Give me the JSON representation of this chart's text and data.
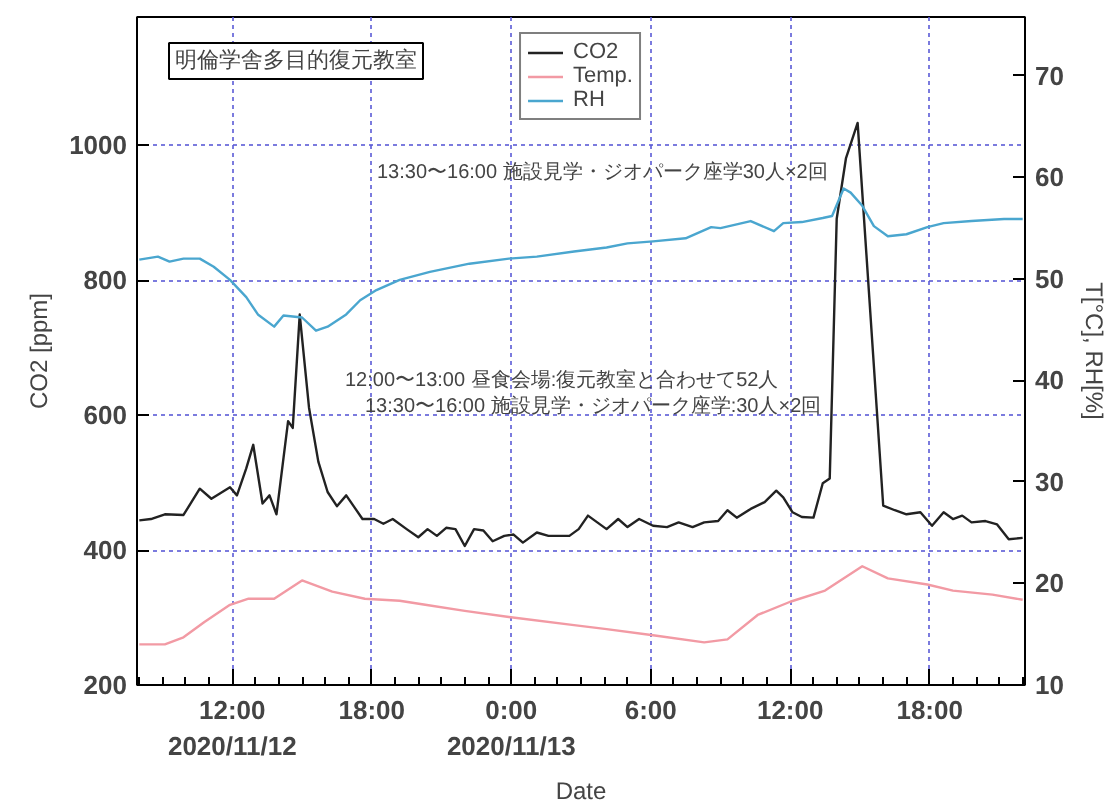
{
  "chart_data": {
    "type": "line",
    "title": "明倫学舎多目的復元教室",
    "xlabel": "Date",
    "ylabel": "CO2 [ppm]",
    "y2label": "T[°C], RH[%]",
    "xlim": [
      "2020-11-12T07:54",
      "2020-11-13T22:06"
    ],
    "xticks": [
      {
        "value": "2020-11-12T12:00",
        "label": "12:00\n2020/11/12"
      },
      {
        "value": "2020-11-12T18:00",
        "label": "18:00"
      },
      {
        "value": "2020-11-13T00:00",
        "label": "0:00\n2020/11/13"
      },
      {
        "value": "2020-11-13T06:00",
        "label": "6:00"
      },
      {
        "value": "2020-11-13T12:00",
        "label": "12:00"
      },
      {
        "value": "2020-11-13T18:00",
        "label": "18:00"
      }
    ],
    "ylim": [
      200,
      1190
    ],
    "yticks": [
      200,
      400,
      600,
      800,
      1000
    ],
    "y2lim": [
      10,
      75.8
    ],
    "y2ticks": [
      10,
      20,
      30,
      40,
      50,
      60,
      70
    ],
    "grid": true,
    "legend": "top",
    "line_style": "solid",
    "series": [
      {
        "name": "CO2",
        "color": "#222222",
        "x": [
          "2020-11-12T08:00",
          "2020-11-12T08:30",
          "2020-11-12T09:06",
          "2020-11-12T09:54",
          "2020-11-12T10:36",
          "2020-11-12T11:06",
          "2020-11-12T11:54",
          "2020-11-12T12:12",
          "2020-11-12T12:36",
          "2020-11-12T12:54",
          "2020-11-12T13:18",
          "2020-11-12T13:36",
          "2020-11-12T13:54",
          "2020-11-12T14:24",
          "2020-11-12T14:36",
          "2020-11-12T14:54",
          "2020-11-12T15:18",
          "2020-11-12T15:42",
          "2020-11-12T16:06",
          "2020-11-12T16:30",
          "2020-11-12T16:54",
          "2020-11-12T17:18",
          "2020-11-12T17:36",
          "2020-11-12T18:06",
          "2020-11-12T18:30",
          "2020-11-12T18:54",
          "2020-11-12T19:30",
          "2020-11-12T20:00",
          "2020-11-12T20:24",
          "2020-11-12T20:48",
          "2020-11-12T21:12",
          "2020-11-12T21:36",
          "2020-11-12T22:00",
          "2020-11-12T22:24",
          "2020-11-12T22:48",
          "2020-11-12T23:12",
          "2020-11-12T23:42",
          "2020-11-13T00:06",
          "2020-11-13T00:30",
          "2020-11-13T01:06",
          "2020-11-13T01:36",
          "2020-11-13T02:30",
          "2020-11-13T02:54",
          "2020-11-13T03:18",
          "2020-11-13T03:42",
          "2020-11-13T04:06",
          "2020-11-13T04:36",
          "2020-11-13T05:00",
          "2020-11-13T05:30",
          "2020-11-13T06:06",
          "2020-11-13T06:42",
          "2020-11-13T07:12",
          "2020-11-13T07:48",
          "2020-11-13T08:18",
          "2020-11-13T08:54",
          "2020-11-13T09:18",
          "2020-11-13T09:42",
          "2020-11-13T10:18",
          "2020-11-13T10:54",
          "2020-11-13T11:24",
          "2020-11-13T11:42",
          "2020-11-13T12:06",
          "2020-11-13T12:30",
          "2020-11-13T13:00",
          "2020-11-13T13:24",
          "2020-11-13T13:42",
          "2020-11-13T14:00",
          "2020-11-13T14:24",
          "2020-11-13T14:54",
          "2020-11-13T16:00",
          "2020-11-13T16:30",
          "2020-11-13T17:00",
          "2020-11-13T17:36",
          "2020-11-13T18:06",
          "2020-11-13T18:36",
          "2020-11-13T19:00",
          "2020-11-13T19:24",
          "2020-11-13T19:48",
          "2020-11-13T20:24",
          "2020-11-13T20:54",
          "2020-11-13T21:24",
          "2020-11-13T22:00"
        ],
        "values": [
          444,
          446,
          453,
          452,
          491,
          476,
          493,
          481,
          521,
          556,
          469,
          481,
          453,
          591,
          581,
          749,
          611,
          531,
          486,
          465,
          481,
          461,
          446,
          446,
          439,
          446,
          431,
          419,
          431,
          421,
          433,
          431,
          406,
          431,
          429,
          413,
          421,
          423,
          411,
          426,
          421,
          421,
          431,
          451,
          441,
          431,
          446,
          434,
          446,
          436,
          434,
          441,
          434,
          441,
          443,
          459,
          448,
          461,
          471,
          488,
          478,
          456,
          449,
          448,
          499,
          506,
          891,
          981,
          1033,
          466,
          459,
          453,
          456,
          436,
          456,
          446,
          451,
          441,
          443,
          438,
          416,
          418
        ]
      },
      {
        "name": "Temp.",
        "color": "#f29aa4",
        "axis": "y2",
        "x": [
          "2020-11-12T08:00",
          "2020-11-12T09:06",
          "2020-11-12T09:54",
          "2020-11-12T10:48",
          "2020-11-12T11:54",
          "2020-11-12T12:42",
          "2020-11-12T13:48",
          "2020-11-12T15:00",
          "2020-11-12T16:18",
          "2020-11-12T17:42",
          "2020-11-12T19:12",
          "2020-11-12T20:18",
          "2020-11-12T22:00",
          "2020-11-12T23:54",
          "2020-11-13T02:42",
          "2020-11-13T04:06",
          "2020-11-13T06:06",
          "2020-11-13T08:18",
          "2020-11-13T09:18",
          "2020-11-13T10:36",
          "2020-11-13T12:00",
          "2020-11-13T13:30",
          "2020-11-13T15:06",
          "2020-11-13T16:12",
          "2020-11-13T17:54",
          "2020-11-13T19:00",
          "2020-11-13T20:42",
          "2020-11-13T22:00"
        ],
        "values": [
          14.0,
          14.0,
          14.7,
          16.2,
          17.9,
          18.5,
          18.5,
          20.3,
          19.2,
          18.5,
          18.3,
          17.9,
          17.3,
          16.7,
          15.9,
          15.5,
          14.9,
          14.2,
          14.5,
          16.9,
          18.2,
          19.3,
          21.7,
          20.5,
          19.9,
          19.3,
          18.9,
          18.4
        ]
      },
      {
        "name": "RH",
        "color": "#4aa6cf",
        "axis": "y2",
        "x": [
          "2020-11-12T08:00",
          "2020-11-12T08:48",
          "2020-11-12T09:18",
          "2020-11-12T09:54",
          "2020-11-12T10:36",
          "2020-11-12T11:12",
          "2020-11-12T11:54",
          "2020-11-12T12:36",
          "2020-11-12T13:06",
          "2020-11-12T13:48",
          "2020-11-12T14:12",
          "2020-11-12T15:00",
          "2020-11-12T15:36",
          "2020-11-12T16:06",
          "2020-11-12T16:54",
          "2020-11-12T17:30",
          "2020-11-12T18:12",
          "2020-11-12T19:12",
          "2020-11-12T20:30",
          "2020-11-12T22:12",
          "2020-11-12T23:54",
          "2020-11-13T01:06",
          "2020-11-13T02:42",
          "2020-11-13T04:06",
          "2020-11-13T05:00",
          "2020-11-13T06:06",
          "2020-11-13T07:30",
          "2020-11-13T08:36",
          "2020-11-13T09:00",
          "2020-11-13T10:18",
          "2020-11-13T11:18",
          "2020-11-13T11:42",
          "2020-11-13T12:30",
          "2020-11-13T13:24",
          "2020-11-13T13:48",
          "2020-11-13T14:18",
          "2020-11-13T14:36",
          "2020-11-13T15:06",
          "2020-11-13T15:36",
          "2020-11-13T16:12",
          "2020-11-13T17:00",
          "2020-11-13T17:54",
          "2020-11-13T18:36",
          "2020-11-13T19:48",
          "2020-11-13T21:12",
          "2020-11-13T22:00"
        ],
        "values": [
          51.9,
          52.2,
          51.7,
          52.0,
          52.0,
          51.2,
          49.9,
          48.2,
          46.5,
          45.3,
          46.4,
          46.2,
          44.9,
          45.3,
          46.5,
          47.9,
          48.9,
          49.9,
          50.7,
          51.5,
          52.0,
          52.2,
          52.7,
          53.1,
          53.5,
          53.7,
          54.0,
          55.1,
          55.0,
          55.7,
          54.7,
          55.5,
          55.6,
          56.0,
          56.2,
          58.9,
          58.5,
          57.2,
          55.2,
          54.2,
          54.4,
          55.1,
          55.5,
          55.7,
          55.9,
          55.9
        ]
      }
    ],
    "annotations": [
      "12:00〜13:00 昼食会場:復元教室と合わせて52人",
      "13:30〜16:00 施設見学・ジオパーク座学:30人×2回",
      "13:30〜16:00 施設見学・ジオパーク座学30人×2回"
    ]
  }
}
